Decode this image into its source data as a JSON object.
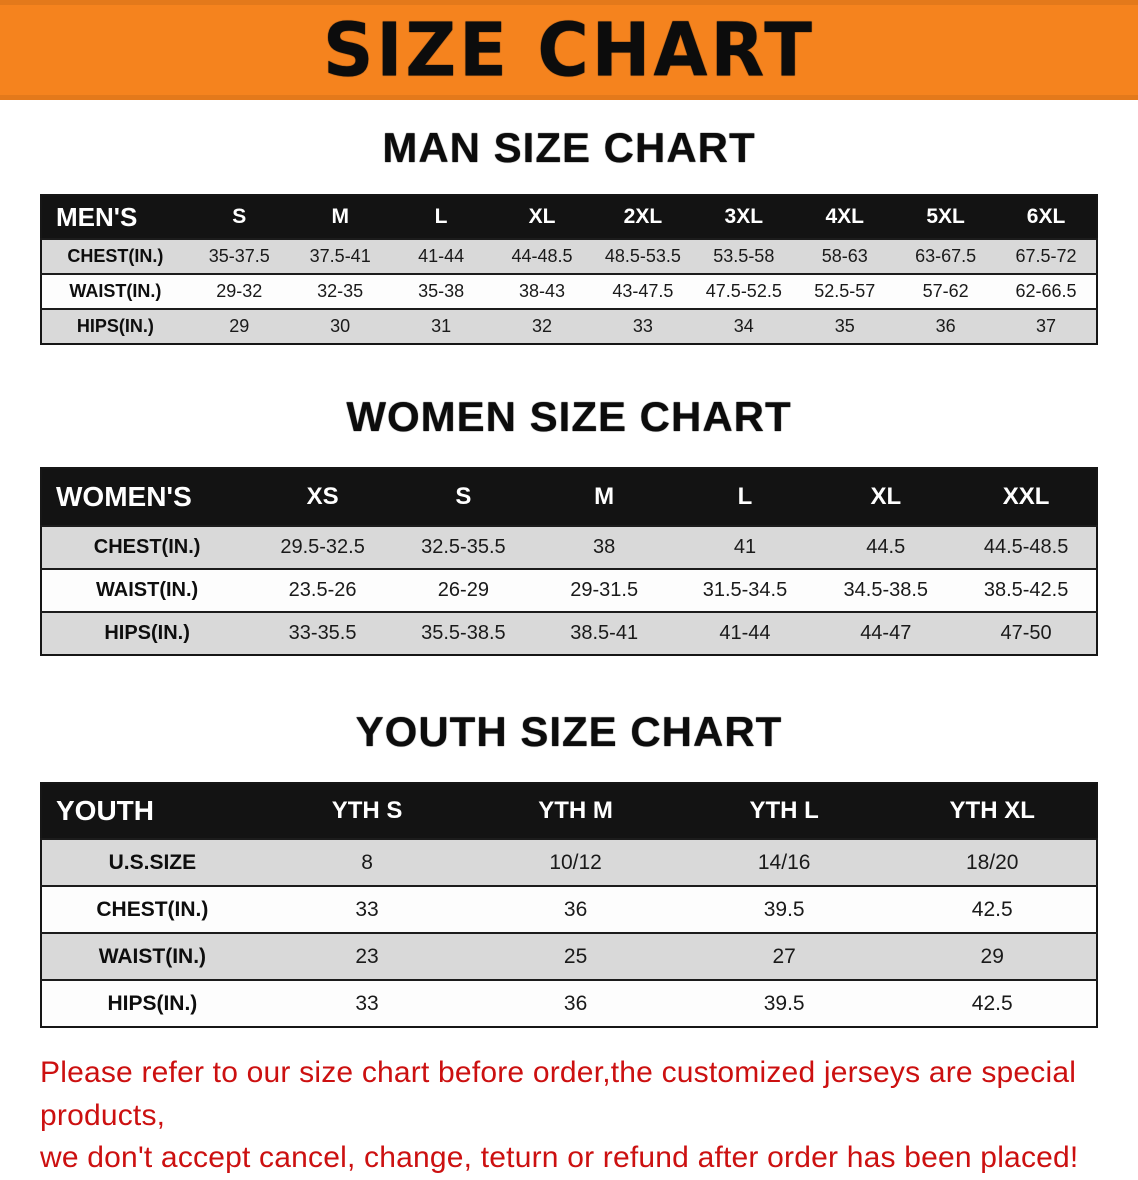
{
  "banner": {
    "title": "SIZE CHART",
    "background": "#F5831E"
  },
  "sections": [
    {
      "heading": "MAN SIZE CHART",
      "table": {
        "header_label": "MEN'S",
        "columns": [
          "S",
          "M",
          "L",
          "XL",
          "2XL",
          "3XL",
          "4XL",
          "5XL",
          "6XL"
        ],
        "rows": [
          {
            "label": "CHEST(IN.)",
            "values": [
              "35-37.5",
              "37.5-41",
              "41-44",
              "44-48.5",
              "48.5-53.5",
              "53.5-58",
              "58-63",
              "63-67.5",
              "67.5-72"
            ]
          },
          {
            "label": "WAIST(IN.)",
            "values": [
              "29-32",
              "32-35",
              "35-38",
              "38-43",
              "43-47.5",
              "47.5-52.5",
              "52.5-57",
              "57-62",
              "62-66.5"
            ]
          },
          {
            "label": "HIPS(IN.)",
            "values": [
              "29",
              "30",
              "31",
              "32",
              "33",
              "34",
              "35",
              "36",
              "37"
            ]
          }
        ]
      }
    },
    {
      "heading": "WOMEN SIZE CHART",
      "table": {
        "header_label": "WOMEN'S",
        "columns": [
          "XS",
          "S",
          "M",
          "L",
          "XL",
          "XXL"
        ],
        "rows": [
          {
            "label": "CHEST(IN.)",
            "values": [
              "29.5-32.5",
              "32.5-35.5",
              "38",
              "41",
              "44.5",
              "44.5-48.5"
            ]
          },
          {
            "label": "WAIST(IN.)",
            "values": [
              "23.5-26",
              "26-29",
              "29-31.5",
              "31.5-34.5",
              "34.5-38.5",
              "38.5-42.5"
            ]
          },
          {
            "label": "HIPS(IN.)",
            "values": [
              "33-35.5",
              "35.5-38.5",
              "38.5-41",
              "41-44",
              "44-47",
              "47-50"
            ]
          }
        ]
      }
    },
    {
      "heading": "YOUTH SIZE CHART",
      "table": {
        "header_label": "YOUTH",
        "columns": [
          "YTH S",
          "YTH M",
          "YTH L",
          "YTH XL"
        ],
        "rows": [
          {
            "label": "U.S.SIZE",
            "values": [
              "8",
              "10/12",
              "14/16",
              "18/20"
            ]
          },
          {
            "label": "CHEST(IN.)",
            "values": [
              "33",
              "36",
              "39.5",
              "42.5"
            ]
          },
          {
            "label": "WAIST(IN.)",
            "values": [
              "23",
              "25",
              "27",
              "29"
            ]
          },
          {
            "label": "HIPS(IN.)",
            "values": [
              "33",
              "36",
              "39.5",
              "42.5"
            ]
          }
        ]
      }
    }
  ],
  "footer_note": {
    "line1": "Please refer to our size chart before order,the customized jerseys are special products,",
    "line2": "we don't accept cancel, change, teturn or refund after order has been placed!",
    "color": "#CC1010"
  }
}
